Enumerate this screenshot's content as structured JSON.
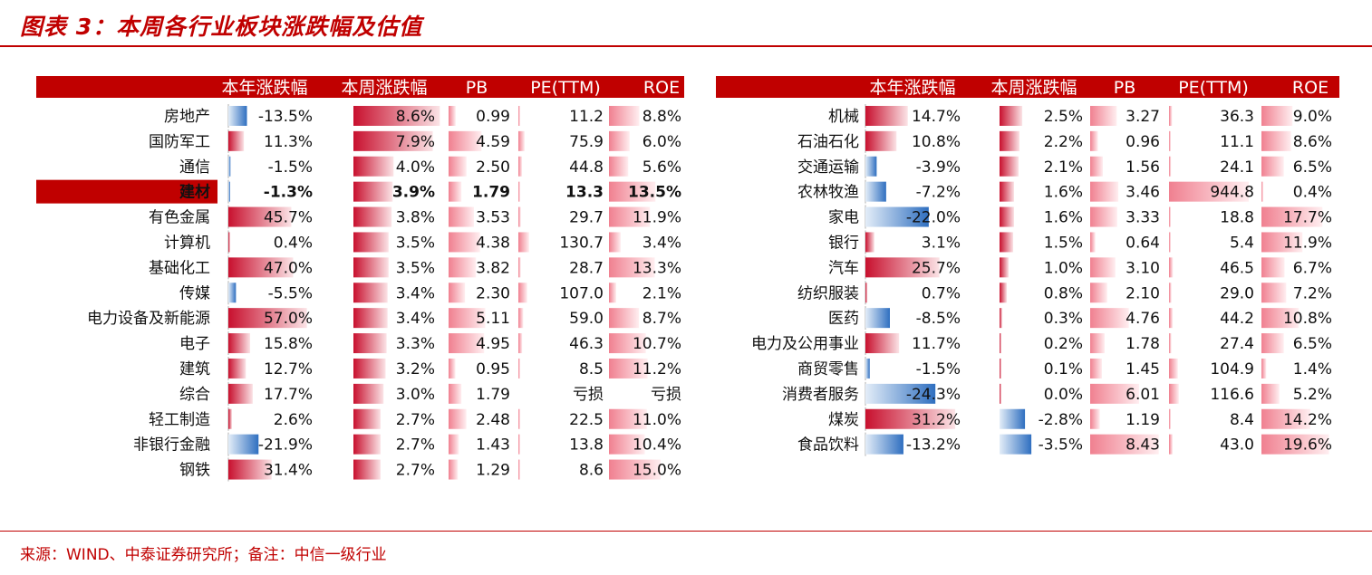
{
  "title": "图表 3：本周各行业板块涨跌幅及估值",
  "footer": "来源：WIND、中泰证券研究所；备注：中信一级行业",
  "colors": {
    "accent": "#c00000",
    "positive": "#e0303a",
    "negative": "#3a78c8",
    "header_bg": "#c00000"
  },
  "chart_data": [
    {
      "type": "table",
      "headers": [
        "",
        "本年涨跌幅",
        "本周涨跌幅",
        "PB",
        "PE(TTM)",
        "ROE"
      ],
      "highlight_row": "建材",
      "rows": [
        {
          "name": "房地产",
          "ytd": "-13.5%",
          "week": "8.6%",
          "pb": "0.99",
          "pe": "11.2",
          "roe": "8.8%"
        },
        {
          "name": "国防军工",
          "ytd": "11.3%",
          "week": "7.9%",
          "pb": "4.59",
          "pe": "75.9",
          "roe": "6.0%"
        },
        {
          "name": "通信",
          "ytd": "-1.5%",
          "week": "4.0%",
          "pb": "2.50",
          "pe": "44.8",
          "roe": "5.6%"
        },
        {
          "name": "建材",
          "ytd": "-1.3%",
          "week": "3.9%",
          "pb": "1.79",
          "pe": "13.3",
          "roe": "13.5%"
        },
        {
          "name": "有色金属",
          "ytd": "45.7%",
          "week": "3.8%",
          "pb": "3.53",
          "pe": "29.7",
          "roe": "11.9%"
        },
        {
          "name": "计算机",
          "ytd": "0.4%",
          "week": "3.5%",
          "pb": "4.38",
          "pe": "130.7",
          "roe": "3.4%"
        },
        {
          "name": "基础化工",
          "ytd": "47.0%",
          "week": "3.5%",
          "pb": "3.82",
          "pe": "28.7",
          "roe": "13.3%"
        },
        {
          "name": "传媒",
          "ytd": "-5.5%",
          "week": "3.4%",
          "pb": "2.30",
          "pe": "107.0",
          "roe": "2.1%"
        },
        {
          "name": "电力设备及新能源",
          "ytd": "57.0%",
          "week": "3.4%",
          "pb": "5.11",
          "pe": "59.0",
          "roe": "8.7%"
        },
        {
          "name": "电子",
          "ytd": "15.8%",
          "week": "3.3%",
          "pb": "4.95",
          "pe": "46.3",
          "roe": "10.7%"
        },
        {
          "name": "建筑",
          "ytd": "12.7%",
          "week": "3.2%",
          "pb": "0.95",
          "pe": "8.5",
          "roe": "11.2%"
        },
        {
          "name": "综合",
          "ytd": "17.7%",
          "week": "3.0%",
          "pb": "1.79",
          "pe": "亏损",
          "roe": "亏损"
        },
        {
          "name": "轻工制造",
          "ytd": "2.6%",
          "week": "2.7%",
          "pb": "2.48",
          "pe": "22.5",
          "roe": "11.0%"
        },
        {
          "name": "非银行金融",
          "ytd": "-21.9%",
          "week": "2.7%",
          "pb": "1.43",
          "pe": "13.8",
          "roe": "10.4%"
        },
        {
          "name": "钢铁",
          "ytd": "31.4%",
          "week": "2.7%",
          "pb": "1.29",
          "pe": "8.6",
          "roe": "15.0%"
        }
      ]
    },
    {
      "type": "table",
      "headers": [
        "",
        "本年涨跌幅",
        "本周涨跌幅",
        "PB",
        "PE(TTM)",
        "ROE"
      ],
      "rows": [
        {
          "name": "机械",
          "ytd": "14.7%",
          "week": "2.5%",
          "pb": "3.27",
          "pe": "36.3",
          "roe": "9.0%"
        },
        {
          "name": "石油石化",
          "ytd": "10.8%",
          "week": "2.2%",
          "pb": "0.96",
          "pe": "11.1",
          "roe": "8.6%"
        },
        {
          "name": "交通运输",
          "ytd": "-3.9%",
          "week": "2.1%",
          "pb": "1.56",
          "pe": "24.1",
          "roe": "6.5%"
        },
        {
          "name": "农林牧渔",
          "ytd": "-7.2%",
          "week": "1.6%",
          "pb": "3.46",
          "pe": "944.8",
          "roe": "0.4%"
        },
        {
          "name": "家电",
          "ytd": "-22.0%",
          "week": "1.6%",
          "pb": "3.33",
          "pe": "18.8",
          "roe": "17.7%"
        },
        {
          "name": "银行",
          "ytd": "3.1%",
          "week": "1.5%",
          "pb": "0.64",
          "pe": "5.4",
          "roe": "11.9%"
        },
        {
          "name": "汽车",
          "ytd": "25.7%",
          "week": "1.0%",
          "pb": "3.10",
          "pe": "46.5",
          "roe": "6.7%"
        },
        {
          "name": "纺织服装",
          "ytd": "0.7%",
          "week": "0.8%",
          "pb": "2.10",
          "pe": "29.0",
          "roe": "7.2%"
        },
        {
          "name": "医药",
          "ytd": "-8.5%",
          "week": "0.3%",
          "pb": "4.76",
          "pe": "44.2",
          "roe": "10.8%"
        },
        {
          "name": "电力及公用事业",
          "ytd": "11.7%",
          "week": "0.2%",
          "pb": "1.78",
          "pe": "27.4",
          "roe": "6.5%"
        },
        {
          "name": "商贸零售",
          "ytd": "-1.5%",
          "week": "0.1%",
          "pb": "1.45",
          "pe": "104.9",
          "roe": "1.4%"
        },
        {
          "name": "消费者服务",
          "ytd": "-24.3%",
          "week": "0.0%",
          "pb": "6.01",
          "pe": "116.6",
          "roe": "5.2%"
        },
        {
          "name": "煤炭",
          "ytd": "31.2%",
          "week": "-2.8%",
          "pb": "1.19",
          "pe": "8.4",
          "roe": "14.2%"
        },
        {
          "name": "食品饮料",
          "ytd": "-13.2%",
          "week": "-3.5%",
          "pb": "8.43",
          "pe": "43.0",
          "roe": "19.6%"
        }
      ]
    }
  ]
}
